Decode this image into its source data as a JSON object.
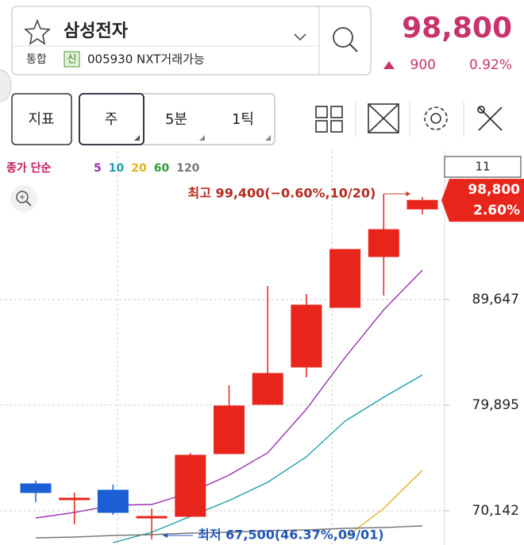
{
  "header": {
    "name": "삼성전자",
    "market": "통합",
    "badge": "신",
    "code": "005930 NXT거래가능",
    "price": "98,800",
    "change": "900",
    "change_rate": "0.92%"
  },
  "toolbar": {
    "buttons": [
      "지표",
      "주",
      "5분",
      "1틱"
    ]
  },
  "chart_data": {
    "type": "candlestick",
    "legend_prefix": "종가 단순",
    "period_count": "11",
    "categories": [
      null,
      null,
      null,
      null,
      null,
      null,
      null,
      null,
      null,
      null,
      null
    ],
    "open": [
      72635,
      71315,
      72049,
      69629,
      69629,
      75422,
      79968,
      83415,
      88915,
      93608,
      98000
    ],
    "high": [
      72929,
      71829,
      72562,
      70362,
      75495,
      81728,
      90895,
      90162,
      94268,
      99400,
      99100
    ],
    "low": [
      70949,
      68895,
      69775,
      67500,
      69629,
      75422,
      79968,
      82462,
      88915,
      90015,
      97500
    ],
    "close": [
      71829,
      71315,
      69995,
      69629,
      75275,
      79822,
      82828,
      89135,
      94268,
      96101,
      98800
    ],
    "up_color": "#e8251b",
    "down_color": "#1c5fd4",
    "series": [
      {
        "name": "5",
        "color": "#9b2fb0",
        "values": [
          69482,
          69995,
          70655,
          70729,
          71829,
          73442,
          75495,
          79528,
          84295,
          88694,
          92361
        ]
      },
      {
        "name": "10",
        "color": "#1aa0a8",
        "values": [
          null,
          null,
          67209,
          68162,
          69629,
          71095,
          72782,
          75128,
          78428,
          80628,
          82682
        ]
      },
      {
        "name": "20",
        "color": "#e0b21c",
        "values": [
          null,
          null,
          null,
          null,
          null,
          null,
          null,
          null,
          67649,
          70362,
          73882
        ]
      },
      {
        "name": "60",
        "color": "#2e9a3a",
        "values": [
          null,
          null,
          null,
          null,
          null,
          null,
          null,
          null,
          null,
          null,
          null
        ]
      },
      {
        "name": "120",
        "color": "#777777",
        "values": [
          67649,
          67722,
          67869,
          67942,
          68089,
          68162,
          68309,
          68382,
          68529,
          68602,
          68749
        ]
      }
    ],
    "ylim": [
      66989,
      103360
    ],
    "yticks": [
      {
        "value": 70142,
        "label": "70,142"
      },
      {
        "value": 79895,
        "label": "79,895"
      },
      {
        "value": 89647,
        "label": "89,647"
      }
    ],
    "grid": true,
    "last_price": {
      "value": 98800,
      "label": "98,800"
    },
    "last_change": "2.60%",
    "max_label": "최고 99,400(−0.60%,10/20)",
    "min_label": "최저 67,500(46.37%,09/01)"
  }
}
